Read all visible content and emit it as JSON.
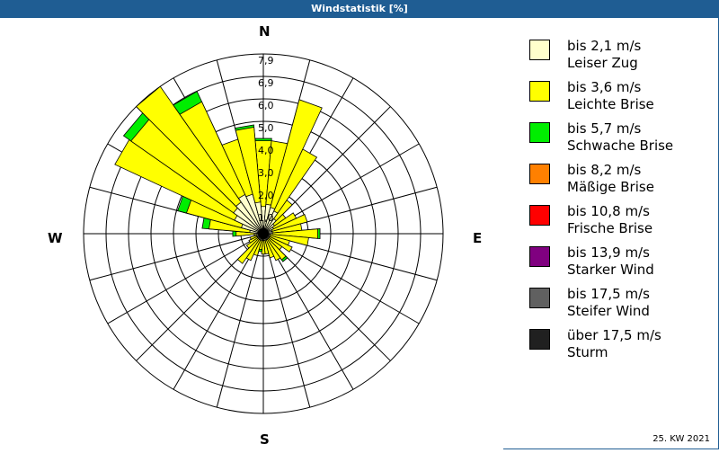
{
  "header": {
    "title": "Windstatistik [%]"
  },
  "footer": {
    "period": "25. KW 2021"
  },
  "compass": {
    "n": "N",
    "e": "E",
    "s": "S",
    "w": "W"
  },
  "legend": [
    {
      "range": "bis 2,1 m/s",
      "name": "Leiser Zug",
      "color": "#ffffcc"
    },
    {
      "range": "bis 3,6 m/s",
      "name": "Leichte Brise",
      "color": "#ffff00"
    },
    {
      "range": "bis 5,7 m/s",
      "name": "Schwache Brise",
      "color": "#00ee00"
    },
    {
      "range": "bis 8,2 m/s",
      "name": "Mäßige Brise",
      "color": "#ff8000"
    },
    {
      "range": "bis 10,8 m/s",
      "name": "Frische Brise",
      "color": "#ff0000"
    },
    {
      "range": "bis 13,9 m/s",
      "name": "Starker Wind",
      "color": "#800080"
    },
    {
      "range": "bis 17,5 m/s",
      "name": "Steifer Wind",
      "color": "#606060"
    },
    {
      "range": "über 17,5 m/s",
      "name": "Sturm",
      "color": "#202020"
    }
  ],
  "chart_data": {
    "type": "wind-rose",
    "title": "Windstatistik [%]",
    "subtitle": "25. KW 2021",
    "ring_labels": [
      "1,0",
      "2,0",
      "3,0",
      "4,0",
      "5,0",
      "6,0",
      "6,9",
      "7,9"
    ],
    "rmax": 7.9,
    "directions_deg": [
      0,
      10,
      20,
      30,
      40,
      50,
      60,
      70,
      80,
      90,
      100,
      110,
      120,
      130,
      140,
      150,
      160,
      170,
      180,
      190,
      200,
      210,
      220,
      230,
      240,
      250,
      260,
      270,
      280,
      290,
      300,
      310,
      320,
      330,
      340,
      350
    ],
    "series": [
      {
        "name": "bis 2,1 m/s Leiser Zug",
        "color": "#ffffcc",
        "values": [
          1.2,
          1.3,
          1.2,
          1.1,
          0.8,
          0.6,
          0.5,
          0.4,
          0.4,
          0.4,
          0.3,
          0.3,
          0.3,
          0.3,
          0.3,
          0.3,
          0.3,
          0.3,
          0.3,
          0.3,
          0.3,
          0.3,
          0.3,
          0.3,
          0.3,
          0.3,
          0.3,
          0.4,
          0.6,
          1.0,
          1.4,
          1.6,
          1.7,
          1.9,
          1.8,
          1.4
        ]
      },
      {
        "name": "bis 3,6 m/s Leichte Brise",
        "color": "#ffff00",
        "values": [
          2.9,
          2.8,
          4.9,
          3.0,
          1.0,
          0.6,
          1.1,
          1.6,
          1.3,
          2.0,
          1.7,
          0.9,
          1.1,
          0.7,
          1.1,
          1.0,
          0.8,
          0.6,
          0.6,
          0.4,
          0.7,
          1.0,
          1.3,
          0.6,
          0.4,
          0.3,
          0.1,
          0.8,
          1.8,
          2.5,
          5.8,
          5.5,
          6.2,
          4.5,
          2.5,
          3.3
        ]
      },
      {
        "name": "bis 5,7 m/s Schwache Brise",
        "color": "#00ee00",
        "values": [
          0.1,
          0,
          0,
          0,
          0,
          0,
          0,
          0,
          0,
          0.1,
          0,
          0,
          0,
          0,
          0.1,
          0,
          0,
          0,
          0,
          0.1,
          0,
          0,
          0,
          0,
          0,
          0,
          0,
          0.15,
          0.3,
          0.4,
          0,
          0.4,
          0,
          0.5,
          0,
          0.1
        ]
      },
      {
        "name": "bis 8,2 m/s Mäßige Brise",
        "color": "#ff8000",
        "values": []
      },
      {
        "name": "bis 10,8 m/s Frische Brise",
        "color": "#ff0000",
        "values": []
      },
      {
        "name": "bis 13,9 m/s Starker Wind",
        "color": "#800080",
        "values": []
      },
      {
        "name": "bis 17,5 m/s Steifer Wind",
        "color": "#606060",
        "values": []
      },
      {
        "name": "über 17,5 m/s Sturm",
        "color": "#202020",
        "values": []
      }
    ],
    "legend_position": "right",
    "grid": true
  }
}
